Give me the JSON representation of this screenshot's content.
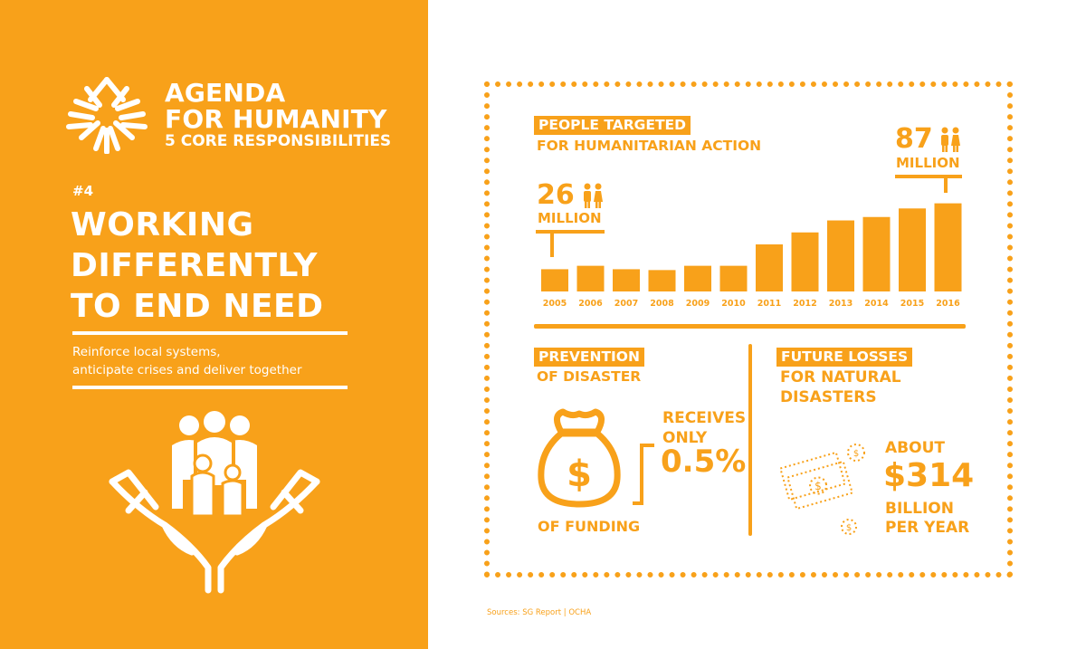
{
  "brand": {
    "line1": "AGENDA",
    "line2": "FOR HUMANITY",
    "line3": "5 CORE RESPONSIBILITIES"
  },
  "responsibility": {
    "number": "#4",
    "headline": [
      "WORKING",
      "DIFFERENTLY",
      "TO END NEED"
    ],
    "tagline": [
      "Reinforce local systems,",
      "anticipate crises and deliver together"
    ]
  },
  "people_targeted": {
    "label": "PEOPLE TARGETED",
    "sub": "FOR HUMANITARIAN ACTION",
    "start": {
      "number": "26",
      "unit": "MILLION"
    },
    "end": {
      "number": "87",
      "unit": "MILLION"
    }
  },
  "chart_data": {
    "type": "bar",
    "categories": [
      "2005",
      "2006",
      "2007",
      "2008",
      "2009",
      "2010",
      "2011",
      "2012",
      "2013",
      "2014",
      "2015",
      "2016"
    ],
    "values": [
      26,
      30,
      26,
      25,
      30,
      30,
      55,
      69,
      83,
      87,
      97,
      103
    ],
    "title": "",
    "xlabel": "",
    "ylabel": "",
    "ylim": [
      0,
      110
    ],
    "grid": false,
    "color": "#f8a11a"
  },
  "prevention": {
    "label": "PREVENTION",
    "sub": "OF DISASTER",
    "receives": [
      "RECEIVES",
      "ONLY"
    ],
    "percent": "0.5%",
    "footer": "OF FUNDING",
    "icon": "money-bag-icon"
  },
  "future_losses": {
    "label": "FUTURE LOSSES",
    "sub": [
      "FOR NATURAL",
      "DISASTERS"
    ],
    "about": "ABOUT",
    "amount": "$314",
    "unit": [
      "BILLION",
      "PER YEAR"
    ],
    "icon": "cash-icon"
  },
  "sources": "Sources:  SG Report | OCHA",
  "colors": {
    "accent": "#f8a11a",
    "text_light": "#ffffff"
  }
}
